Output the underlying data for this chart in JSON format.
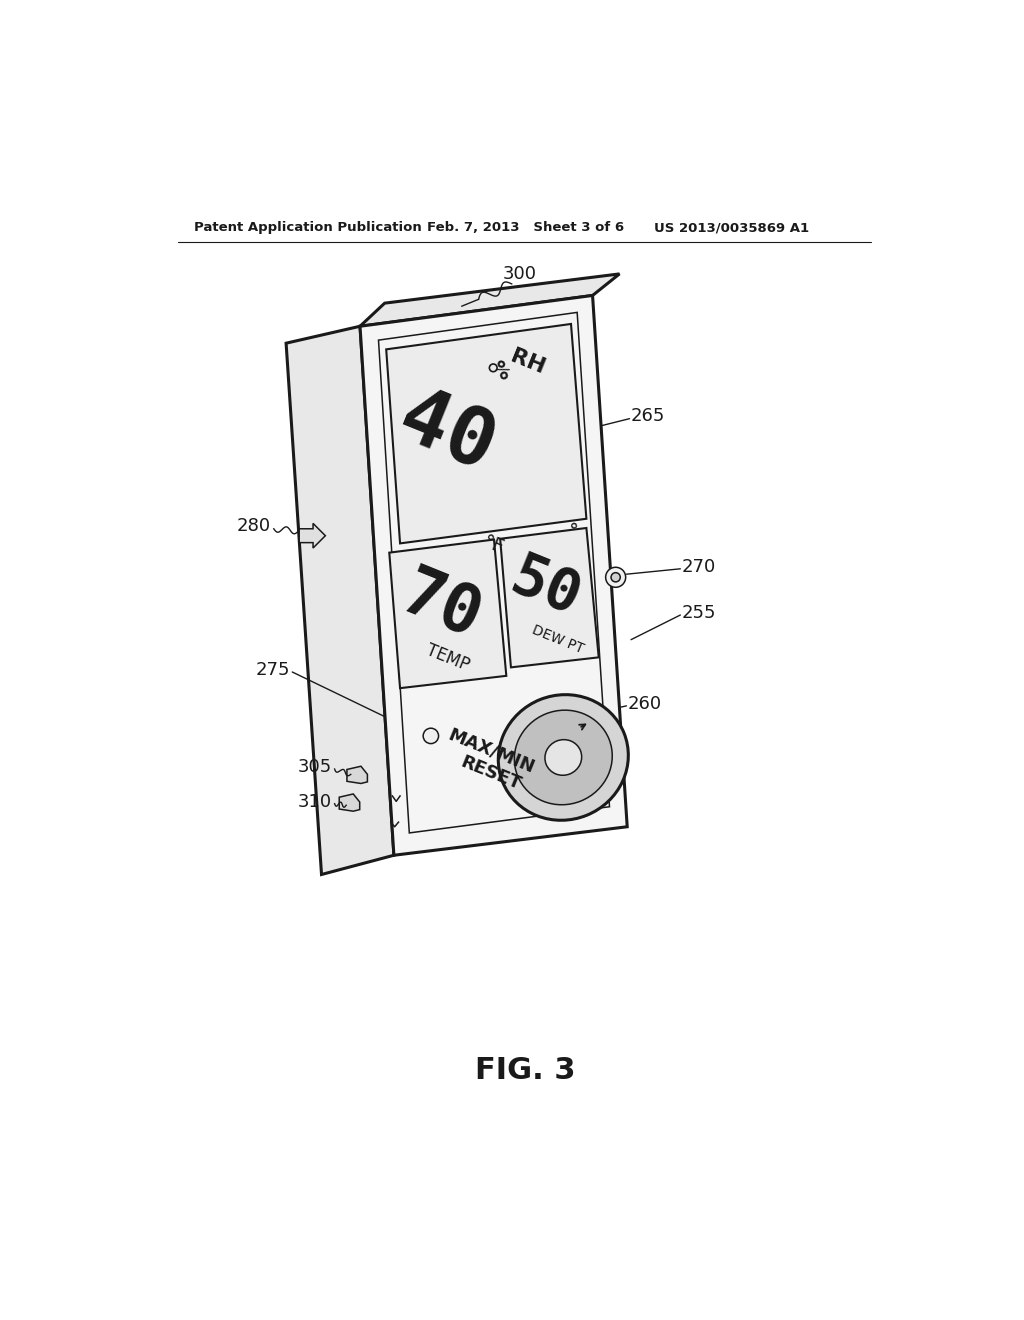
{
  "header_left": "Patent Application Publication",
  "header_mid": "Feb. 7, 2013   Sheet 3 of 6",
  "header_right": "US 2013/0035869 A1",
  "figure_label": "FIG. 3",
  "bg_color": "#ffffff",
  "line_color": "#1a1a1a",
  "device_tilt": -22,
  "label_fontsize": 13
}
